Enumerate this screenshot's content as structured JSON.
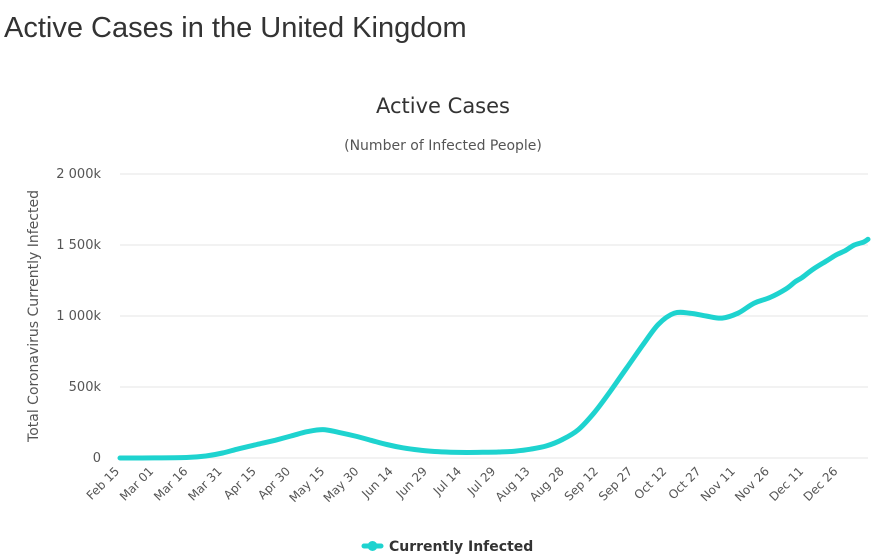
{
  "page": {
    "title": "Active Cases in the United Kingdom"
  },
  "colors": {
    "series": "#1ed3cf",
    "grid": "#e6e6e6",
    "text": "#333333",
    "axis_text": "#555555"
  },
  "chart_data": {
    "type": "line",
    "title": "Active Cases",
    "subtitle": "(Number of Infected People)",
    "xlabel": "",
    "ylabel": "Total Coronavirus Currently Infected",
    "ylim": [
      0,
      2000000
    ],
    "yticks": [
      0,
      500000,
      1000000,
      1500000,
      2000000
    ],
    "ytick_labels": [
      "0",
      "500k",
      "1 000k",
      "1 500k",
      "2 000k"
    ],
    "xtick_labels": [
      "Feb 15",
      "Mar 01",
      "Mar 16",
      "Mar 31",
      "Apr 15",
      "Apr 30",
      "May 15",
      "May 30",
      "Jun 14",
      "Jun 29",
      "Jul 14",
      "Jul 29",
      "Aug 13",
      "Aug 28",
      "Sep 12",
      "Sep 27",
      "Oct 12",
      "Oct 27",
      "Nov 11",
      "Nov 26",
      "Dec 11",
      "Dec 26"
    ],
    "x_start_label": "Feb 15",
    "x_span_days": 328,
    "grid": true,
    "legend": {
      "position": "bottom-center",
      "entries": [
        "Currently Infected"
      ]
    },
    "series": [
      {
        "name": "Currently Infected",
        "x_days": [
          0,
          15,
          30,
          38,
          45,
          52,
          60,
          68,
          75,
          82,
          89,
          96,
          103,
          110,
          117,
          124,
          131,
          138,
          145,
          152,
          159,
          166,
          173,
          180,
          187,
          194,
          201,
          208,
          215,
          222,
          229,
          236,
          243,
          250,
          257,
          264,
          271,
          278,
          285,
          292,
          296,
          299,
          304,
          310,
          314,
          318,
          322,
          326,
          328
        ],
        "values": [
          0,
          1000,
          4000,
          15000,
          35000,
          65000,
          95000,
          125000,
          155000,
          185000,
          200000,
          180000,
          155000,
          125000,
          95000,
          72000,
          56000,
          46000,
          41000,
          39000,
          40000,
          42000,
          48000,
          62000,
          85000,
          130000,
          200000,
          320000,
          470000,
          630000,
          790000,
          940000,
          1020000,
          1020000,
          1000000,
          985000,
          1020000,
          1090000,
          1130000,
          1190000,
          1240000,
          1270000,
          1330000,
          1390000,
          1430000,
          1460000,
          1500000,
          1520000,
          1540000
        ]
      }
    ]
  }
}
